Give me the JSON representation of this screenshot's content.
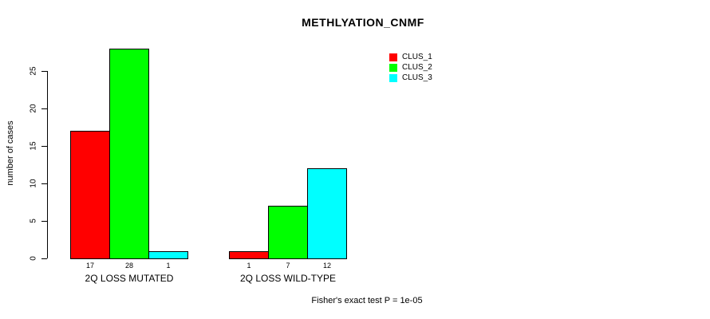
{
  "chart_data": {
    "type": "bar",
    "title": "METHLYATION_CNMF",
    "ylabel": "number of cases",
    "xlabel": "",
    "ylim": [
      0,
      28
    ],
    "yticks": [
      0,
      5,
      10,
      15,
      20,
      25
    ],
    "grid": false,
    "legend_position": "upper-right",
    "categories": [
      "2Q LOSS MUTATED",
      "2Q LOSS WILD-TYPE"
    ],
    "series": [
      {
        "name": "CLUS_1",
        "color": "#ff0000",
        "values": [
          17,
          1
        ]
      },
      {
        "name": "CLUS_2",
        "color": "#00ff00",
        "values": [
          28,
          7
        ]
      },
      {
        "name": "CLUS_3",
        "color": "#00ffff",
        "values": [
          1,
          12
        ]
      }
    ],
    "bar_value_labels": {
      "2Q LOSS MUTATED": [
        17,
        28,
        1
      ],
      "2Q LOSS WILD-TYPE": [
        1,
        7,
        12
      ]
    },
    "annotation": "Fisher's exact test P = 1e-05"
  },
  "colors": {
    "background": "#ffffff",
    "text": "#000000",
    "bar_border": "#000000",
    "axis": "#000000"
  }
}
